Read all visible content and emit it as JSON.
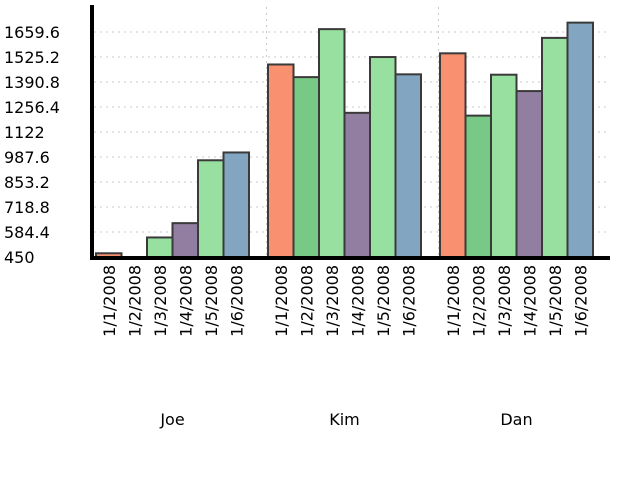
{
  "chart_data": {
    "type": "bar",
    "groups": [
      "Joe",
      "Kim",
      "Dan"
    ],
    "categories": [
      "1/1/2008",
      "1/2/2008",
      "1/3/2008",
      "1/4/2008",
      "1/5/2008",
      "1/6/2008"
    ],
    "series": [
      {
        "group": "Joe",
        "values": [
          470,
          450,
          555,
          632,
          970,
          1012
        ]
      },
      {
        "group": "Kim",
        "values": [
          1485,
          1417,
          1675,
          1225,
          1525,
          1432
        ]
      },
      {
        "group": "Dan",
        "values": [
          1545,
          1210,
          1430,
          1342,
          1628,
          1710
        ]
      }
    ],
    "colors": [
      "#f9906f",
      "#77c985",
      "#98e09f",
      "#917ea0",
      "#98e09f",
      "#82a6c2"
    ],
    "y_ticks": [
      "450",
      "584.4",
      "718.8",
      "853.2",
      "987.6",
      "1122",
      "1256.4",
      "1390.8",
      "1525.2",
      "1659.6"
    ],
    "ylim": [
      450,
      1794
    ],
    "grid": true,
    "title": "",
    "xlabel": "",
    "ylabel": ""
  }
}
